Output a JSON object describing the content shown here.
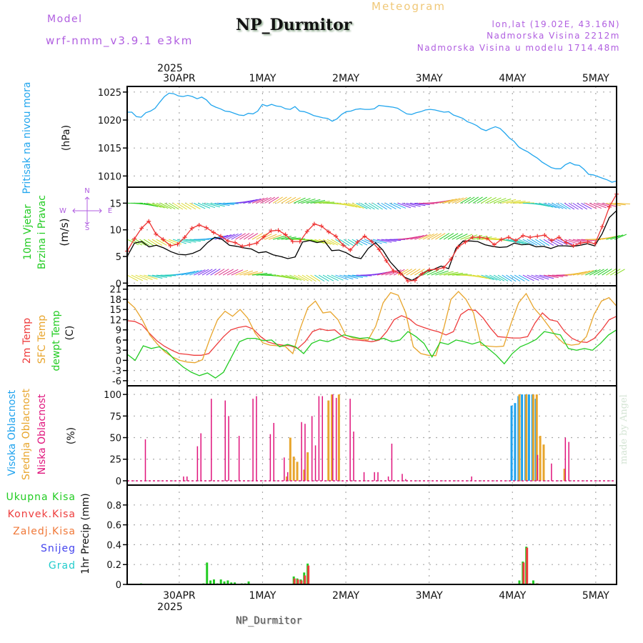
{
  "header": {
    "model_label": "Model",
    "model_name": "wrf-nmm_v3.9.1 e3km",
    "station_title": "NP_Durmitor",
    "meteogram_label": "Meteogram",
    "coords": "lon,lat (19.02E, 43.16N)",
    "elevation": "Nadmorska Visina 2212m",
    "model_elevation": "Nadmorska Visina u modelu 1714.48m",
    "colors": {
      "model": "#b05ee0",
      "meteogram": "#f0c878",
      "info": "#b05ee0"
    }
  },
  "footer": {
    "station": "NP_Durmitor",
    "credit": "made by Angel"
  },
  "time_axis": {
    "year": "2025",
    "ticks": [
      "30APR",
      "1MAY",
      "2MAY",
      "3MAY",
      "4MAY",
      "5MAY"
    ],
    "start_hour_before_first_tick": 15,
    "span_hours": 141
  },
  "compass": {
    "n": "N",
    "s": "S",
    "e": "E",
    "w": "W",
    "color": "#b05ee0"
  },
  "chart_data": [
    {
      "id": "pressure",
      "type": "line",
      "title": "Pritisak na nivou mora",
      "ylabel": "(hPa)",
      "ylim": [
        1008,
        1026
      ],
      "yticks": [
        1010,
        1015,
        1020,
        1025
      ],
      "grid": true,
      "series": [
        {
          "name": "Pritisak na nivou mora",
          "color": "#22a6ee",
          "values": [
            1021.4,
            1021.4,
            1020.6,
            1020.5,
            1021.3,
            1021.6,
            1022.1,
            1023.2,
            1024.2,
            1024.8,
            1024.7,
            1024.3,
            1024.2,
            1024.4,
            1024.2,
            1023.8,
            1024.1,
            1023.6,
            1022.7,
            1022.3,
            1022.0,
            1021.6,
            1021.5,
            1021.2,
            1020.9,
            1020.8,
            1021.2,
            1021.1,
            1021.6,
            1022.8,
            1022.5,
            1022.8,
            1022.5,
            1022.4,
            1022.0,
            1021.9,
            1022.4,
            1021.6,
            1021.5,
            1021.2,
            1020.8,
            1020.6,
            1020.4,
            1020.3,
            1019.8,
            1020.2,
            1021.0,
            1021.5,
            1021.6,
            1021.9,
            1022.0,
            1021.9,
            1021.9,
            1022.0,
            1022.6,
            1022.5,
            1022.4,
            1022.3,
            1022.1,
            1021.6,
            1021.1,
            1021.0,
            1021.3,
            1021.5,
            1021.8,
            1021.9,
            1021.8,
            1021.6,
            1021.4,
            1021.5,
            1020.9,
            1020.6,
            1020.3,
            1019.7,
            1019.4,
            1019.0,
            1018.4,
            1018.1,
            1018.5,
            1018.8,
            1018.5,
            1017.7,
            1016.8,
            1016.2,
            1015.2,
            1014.7,
            1014.3,
            1013.7,
            1013.2,
            1012.5,
            1012.0,
            1011.5,
            1011.3,
            1011.3,
            1012.0,
            1012.4,
            1012.0,
            1011.9,
            1011.2,
            1010.3,
            1010.2,
            1009.9,
            1009.6,
            1009.3,
            1008.9,
            1009.1
          ]
        }
      ]
    },
    {
      "id": "wind",
      "type": "line",
      "title": "10m Vjetar",
      "subtitle": "Brzina i Pravac",
      "ylabel": "(m/s)",
      "ylim": [
        -0.5,
        18
      ],
      "yticks": [
        0,
        5,
        10,
        15
      ],
      "grid": true,
      "barb_rows": [
        15,
        8.2,
        1.5
      ],
      "series": [
        {
          "name": "Brzina vjetra",
          "color": "#000000",
          "values": [
            5,
            7.5,
            7.8,
            6.8,
            7.1,
            6.6,
            5.9,
            5.4,
            5.3,
            5.6,
            6.2,
            7.6,
            8.6,
            8.2,
            7.1,
            6.9,
            6.6,
            6.4,
            5.7,
            5.9,
            5.3,
            5.0,
            4.6,
            4.9,
            7.7,
            8.0,
            7.6,
            7.9,
            6.1,
            6.2,
            5.7,
            4.9,
            4.6,
            6.5,
            7.6,
            6.2,
            4.0,
            2.5,
            1.1,
            0.5,
            1.3,
            2.2,
            2.6,
            3.2,
            2.7,
            6.5,
            7.9,
            7.9,
            7.8,
            7.2,
            6.9,
            6.7,
            6.8,
            7.5,
            7.2,
            7.3,
            6.8,
            6.9,
            6.5,
            7.0,
            7.0,
            6.9,
            7.1,
            7.4,
            7.0,
            9.2,
            12.3,
            13.6
          ]
        },
        {
          "name": "Udari vjetra",
          "color": "#ee3333",
          "marker": "+",
          "values": [
            6,
            8.3,
            10.3,
            11.6,
            9.2,
            8.2,
            7.0,
            7.3,
            8.6,
            10.3,
            10.9,
            10.4,
            9.5,
            8.8,
            7.9,
            7.6,
            6.9,
            7.2,
            7.5,
            8.7,
            9.8,
            9.9,
            9.1,
            7.8,
            7.8,
            9.7,
            11.1,
            10.7,
            9.6,
            8.8,
            7.1,
            6.2,
            7.7,
            8.8,
            7.8,
            6.3,
            4.2,
            2.3,
            1.8,
            0.4,
            0.5,
            1.8,
            2.5,
            2.6,
            2.9,
            4.5,
            6.8,
            7.7,
            8.6,
            8.6,
            8.4,
            7.2,
            8.2,
            8.6,
            8.0,
            8.9,
            8.6,
            8.8,
            9.0,
            8.0,
            8.6,
            7.6,
            7.0,
            7.5,
            7.7,
            7.4,
            10.6,
            14.3,
            16.7
          ]
        }
      ]
    },
    {
      "id": "temperature",
      "type": "line",
      "title": "2m Temp / SFC Temp / dewpt Temp",
      "ylabel": "(C)",
      "ylim": [
        -7.5,
        22
      ],
      "yticks": [
        -6,
        -3,
        0,
        3,
        6,
        9,
        12,
        15,
        18,
        21
      ],
      "grid": true,
      "series": [
        {
          "name": "2m Temp",
          "color": "#ee3c3c",
          "values": [
            11.7,
            11.5,
            10.5,
            8.0,
            5.8,
            4.2,
            3.0,
            2.0,
            1.8,
            1.5,
            1.5,
            2.0,
            4.5,
            7.0,
            9.0,
            9.7,
            10.1,
            9.2,
            7.0,
            5.4,
            4.8,
            4.5,
            4.3,
            3.5,
            5.5,
            8.5,
            9.3,
            8.8,
            9.0,
            7.1,
            6.2,
            6.0,
            5.8,
            5.5,
            6.0,
            8.5,
            12.0,
            13.2,
            12.3,
            10.5,
            9.7,
            9.0,
            8.4,
            7.5,
            8.5,
            13.5,
            15.0,
            14.7,
            12.5,
            9.5,
            7.0,
            6.8,
            6.6,
            6.6,
            7.0,
            11.0,
            14.0,
            12.0,
            11.5,
            8.5,
            6.5,
            5.5,
            5.3,
            6.5,
            9.0,
            12.0,
            13.0
          ]
        },
        {
          "name": "SFC Temp",
          "color": "#e8a52c",
          "values": [
            17.5,
            15.5,
            12.0,
            7.5,
            4.8,
            2.5,
            1.0,
            0.0,
            -0.5,
            -0.7,
            0.2,
            6.5,
            12.0,
            14.5,
            13.0,
            15.0,
            12.5,
            8.0,
            5.2,
            4.5,
            4.3,
            4.1,
            2.0,
            9.5,
            15.5,
            17.5,
            14.0,
            14.3,
            12.0,
            7.5,
            6.6,
            6.3,
            6.0,
            10.0,
            17.0,
            20.0,
            19.2,
            14.0,
            4.0,
            2.0,
            1.5,
            1.4,
            9.0,
            18.0,
            20.3,
            18.0,
            14.0,
            4.5,
            4.2,
            4.0,
            4.2,
            11.0,
            17.0,
            19.7,
            15.5,
            13.0,
            10.0,
            7.0,
            5.0,
            4.5,
            4.8,
            7.0,
            13.5,
            17.5,
            18.5,
            16.0
          ]
        },
        {
          "name": "dewpt Temp",
          "color": "#22cc22",
          "values": [
            1.8,
            0.0,
            4.3,
            3.5,
            4.0,
            2.5,
            0.0,
            -2.0,
            -3.5,
            -4.5,
            -3.7,
            -5.2,
            -3.5,
            1.0,
            5.5,
            6.5,
            6.5,
            5.8,
            6.0,
            4.0,
            4.7,
            4.0,
            2.0,
            5.0,
            6.0,
            5.5,
            6.5,
            7.5,
            7.0,
            6.5,
            6.7,
            6.0,
            6.5,
            5.5,
            6.0,
            8.5,
            7.0,
            5.0,
            1.0,
            5.3,
            4.7,
            6.0,
            5.5,
            4.8,
            5.5,
            3.5,
            1.5,
            -1.0,
            2.0,
            4.0,
            5.0,
            6.2,
            8.5,
            8.0,
            7.5,
            3.5,
            3.0,
            3.5,
            3.0,
            5.0,
            7.5,
            9.0
          ]
        }
      ]
    },
    {
      "id": "cloud",
      "type": "bar",
      "title": "Visoka / Srednja / Niska Oblacnost",
      "ylabel": "(%)",
      "ylim": [
        -5,
        110
      ],
      "yticks": [
        0,
        25,
        50,
        75,
        100
      ],
      "grid": true,
      "hours_from_start": true,
      "series": [
        {
          "name": "Visoka Oblacnost",
          "color": "#1ea2ee",
          "points": [
            [
              111,
              87
            ],
            [
              112,
              90
            ],
            [
              113,
              98
            ],
            [
              114,
              100
            ],
            [
              115,
              100
            ],
            [
              116,
              100
            ],
            [
              117,
              100
            ],
            [
              118,
              95
            ]
          ]
        },
        {
          "name": "Srednja Oblacnost",
          "color": "#e8a52c",
          "points": [
            [
              46,
              5
            ],
            [
              47,
              50
            ],
            [
              48,
              28
            ],
            [
              49,
              22
            ],
            [
              51,
              13
            ],
            [
              52,
              33
            ],
            [
              58,
              93
            ],
            [
              59,
              100
            ],
            [
              61,
              100
            ],
            [
              113,
              100
            ],
            [
              115,
              100
            ],
            [
              117,
              100
            ],
            [
              118,
              100
            ],
            [
              119,
              52
            ],
            [
              120,
              42
            ],
            [
              126,
              14
            ]
          ]
        },
        {
          "name": "Niska Oblacnost",
          "color": "#e0147c",
          "points": [
            [
              5,
              48
            ],
            [
              16,
              5
            ],
            [
              17,
              5
            ],
            [
              20,
              40
            ],
            [
              21,
              55
            ],
            [
              24,
              95
            ],
            [
              28,
              93
            ],
            [
              29,
              75
            ],
            [
              32,
              52
            ],
            [
              36,
              95
            ],
            [
              37,
              98
            ],
            [
              41,
              54
            ],
            [
              42,
              67
            ],
            [
              45,
              27
            ],
            [
              46,
              10
            ],
            [
              50,
              68
            ],
            [
              51,
              66
            ],
            [
              53,
              75
            ],
            [
              54,
              41
            ],
            [
              55,
              98
            ],
            [
              56,
              98
            ],
            [
              59,
              100
            ],
            [
              60,
              96
            ],
            [
              64,
              95
            ],
            [
              65,
              57
            ],
            [
              68,
              10
            ],
            [
              71,
              10
            ],
            [
              72,
              10
            ],
            [
              75,
              5
            ],
            [
              76,
              43
            ],
            [
              79,
              8
            ],
            [
              80,
              2
            ],
            [
              99,
              5
            ],
            [
              118,
              30
            ],
            [
              122,
              20
            ],
            [
              126,
              50
            ],
            [
              127,
              45
            ]
          ]
        }
      ]
    },
    {
      "id": "precip",
      "type": "bar",
      "title": "1hr Precip",
      "ylabel": "1hr Precip (mm)",
      "ylim": [
        0,
        1.0
      ],
      "yticks": [
        0,
        0.2,
        0.4,
        0.6,
        0.8
      ],
      "grid": true,
      "legend": [
        {
          "name": "Ukupna Kisa",
          "color": "#22cc22"
        },
        {
          "name": "Konvek.Kisa",
          "color": "#ee3c3c"
        },
        {
          "name": "Zaledj.Kisa",
          "color": "#f07838"
        },
        {
          "name": "Snijeg",
          "color": "#4444ee"
        },
        {
          "name": "Grad",
          "color": "#22cccc"
        }
      ],
      "series": [
        {
          "name": "Ukupna Kisa",
          "color": "#22cc22",
          "points": [
            [
              4,
              0.01
            ],
            [
              22,
              0.01
            ],
            [
              23,
              0.22
            ],
            [
              24,
              0.04
            ],
            [
              25,
              0.05
            ],
            [
              26,
              0.01
            ],
            [
              27,
              0.05
            ],
            [
              28,
              0.03
            ],
            [
              29,
              0.04
            ],
            [
              30,
              0.02
            ],
            [
              31,
              0.02
            ],
            [
              33,
              0.01
            ],
            [
              34,
              0.01
            ],
            [
              35,
              0.03
            ],
            [
              48,
              0.08
            ],
            [
              49,
              0.06
            ],
            [
              50,
              0.05
            ],
            [
              51,
              0.12
            ],
            [
              52,
              0.21
            ],
            [
              113,
              0.04
            ],
            [
              114,
              0.23
            ],
            [
              115,
              0.38
            ],
            [
              116,
              0.01
            ],
            [
              117,
              0.04
            ],
            [
              118,
              0.01
            ]
          ]
        },
        {
          "name": "Konvek.Kisa",
          "color": "#ee3c3c",
          "points": [
            [
              48,
              0.06
            ],
            [
              49,
              0.05
            ],
            [
              50,
              0.04
            ],
            [
              51,
              0.09
            ],
            [
              52,
              0.19
            ],
            [
              114,
              0.22
            ],
            [
              115,
              0.37
            ],
            [
              116,
              0.01
            ],
            [
              118,
              0.01
            ]
          ]
        }
      ]
    }
  ]
}
